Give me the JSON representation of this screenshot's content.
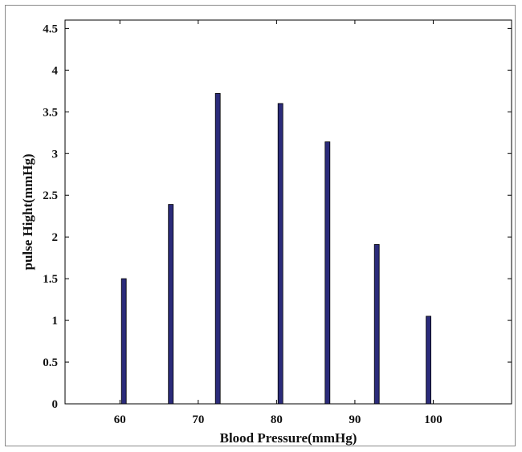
{
  "chart_data": {
    "type": "bar",
    "xlabel": "Blood Pressure(mmHg)",
    "ylabel": "pulse Hight(mmHg)",
    "xlim": [
      53,
      110
    ],
    "ylim": [
      0,
      4.6
    ],
    "xticks": [
      60,
      70,
      80,
      90,
      100
    ],
    "yticks": [
      0,
      0.5,
      1,
      1.5,
      2,
      2.5,
      3,
      3.5,
      4,
      4.5
    ],
    "x": [
      60.5,
      66.5,
      72.5,
      80.5,
      86.5,
      92.8,
      99.4
    ],
    "values": [
      1.5,
      2.39,
      3.72,
      3.6,
      3.14,
      1.91,
      1.05
    ],
    "bar_color": "#2b2b7a",
    "grid": false
  }
}
